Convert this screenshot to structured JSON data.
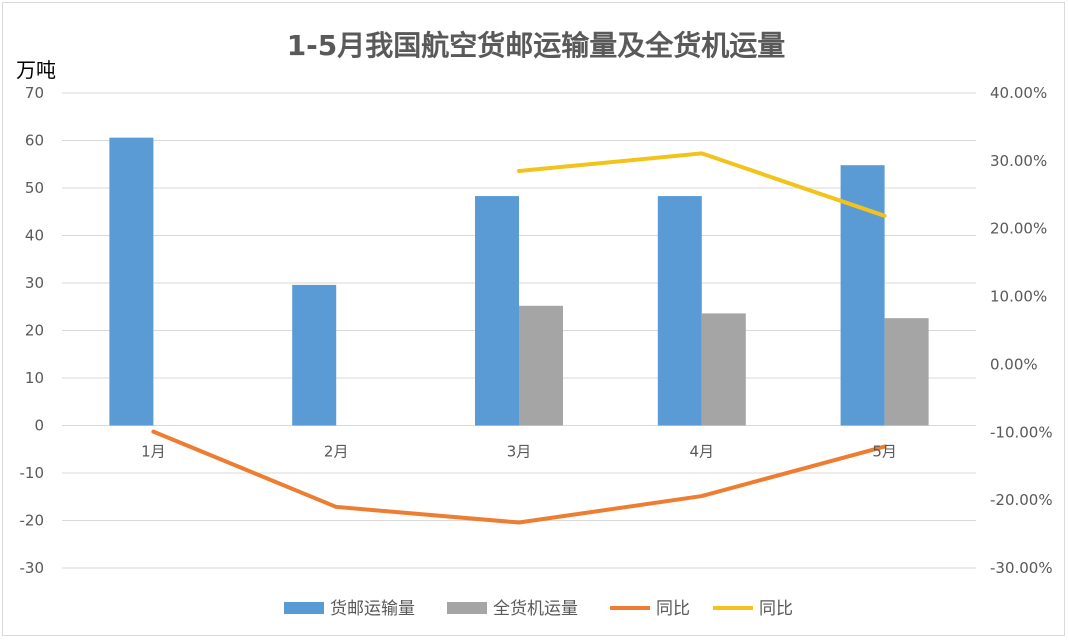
{
  "chart_data": {
    "type": "bar",
    "title": "1-5月我国航空货邮运输量及全货机运量",
    "ylabel": "万吨",
    "categories": [
      "1月",
      "2月",
      "3月",
      "4月",
      "5月"
    ],
    "ylim": [
      -30,
      70
    ],
    "y_ticks": [
      70,
      60,
      50,
      40,
      30,
      20,
      10,
      0,
      -10,
      -20,
      -30
    ],
    "y2lim": [
      -0.3,
      0.4
    ],
    "y2_ticks": [
      "40.00%",
      "30.00%",
      "20.00%",
      "10.00%",
      "0.00%",
      "-10.00%",
      "-20.00%",
      "-30.00%"
    ],
    "grid": true,
    "legend_position": "bottom",
    "series": [
      {
        "name": "货邮运输量",
        "kind": "bar",
        "axis": "left",
        "color": "#5b9bd5",
        "values": [
          60.6,
          29.6,
          48.3,
          48.3,
          54.8
        ]
      },
      {
        "name": "全货机运量",
        "kind": "bar",
        "axis": "left",
        "color": "#a5a5a5",
        "values": [
          null,
          null,
          25.2,
          23.6,
          22.6
        ]
      },
      {
        "name": "同比",
        "kind": "line",
        "axis": "right",
        "color": "#ed7d31",
        "values": [
          -0.099,
          -0.21,
          -0.233,
          -0.194,
          -0.121
        ]
      },
      {
        "name": "同比",
        "kind": "line",
        "axis": "right",
        "color": "#f2c31a",
        "values": [
          null,
          null,
          0.285,
          0.311,
          0.219
        ]
      }
    ]
  }
}
